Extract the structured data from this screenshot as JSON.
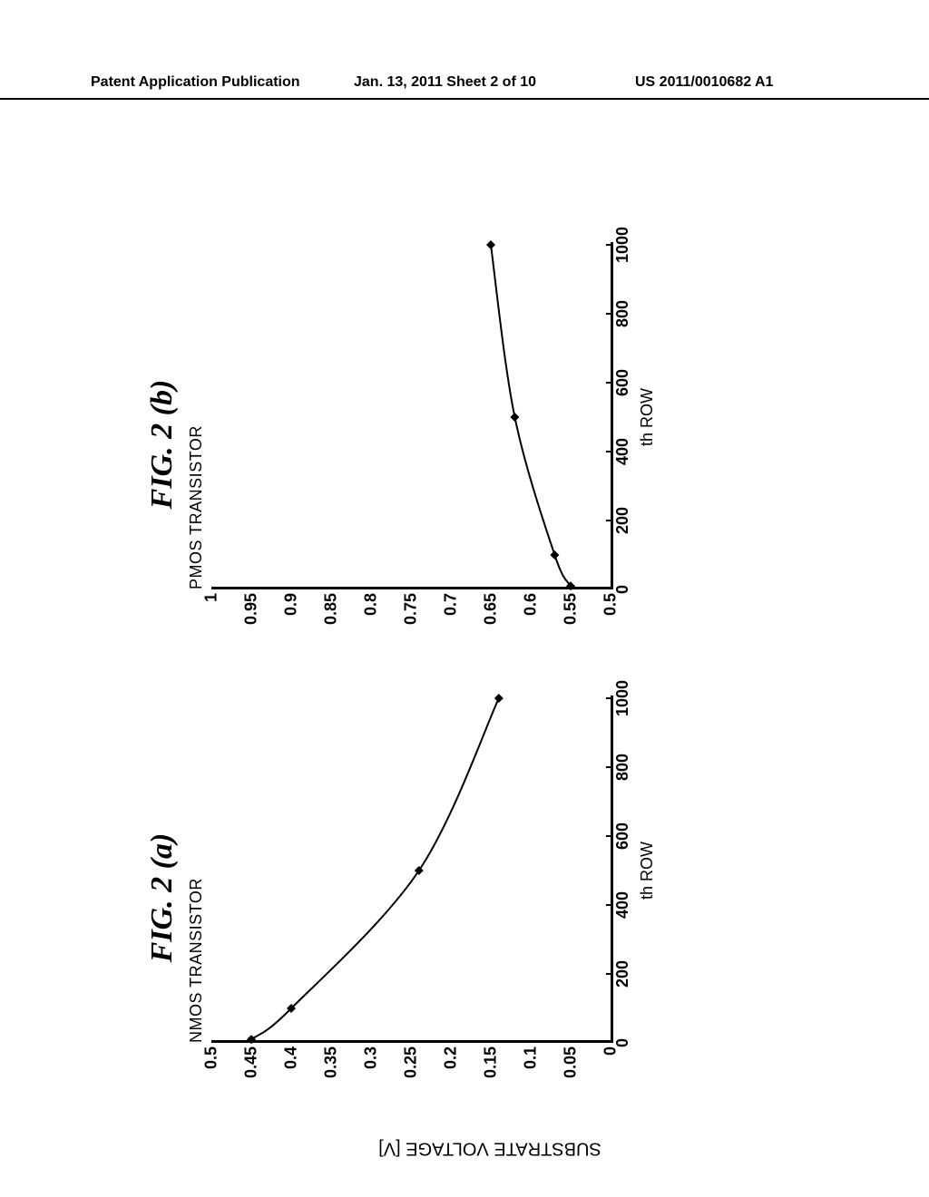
{
  "header": {
    "left": "Patent Application Publication",
    "center": "Jan. 13, 2011  Sheet 2 of 10",
    "right": "US 2011/0010682 A1"
  },
  "shared_y_label": "SUBSTRATE VOLTAGE [V]",
  "chart_a": {
    "type": "line",
    "fig_label": "FIG. 2 (a)",
    "subtitle": "NMOS TRANSISTOR",
    "x_label": "th ROW",
    "x_ticks": [
      0,
      200,
      400,
      600,
      800,
      1000
    ],
    "xlim": [
      0,
      1000
    ],
    "y_ticks": [
      0,
      0.05,
      0.1,
      0.15,
      0.2,
      0.25,
      0.3,
      0.35,
      0.4,
      0.45,
      0.5
    ],
    "ylim": [
      0,
      0.5
    ],
    "points": [
      {
        "x": 10,
        "y": 0.45
      },
      {
        "x": 100,
        "y": 0.4
      },
      {
        "x": 500,
        "y": 0.24
      },
      {
        "x": 1000,
        "y": 0.14
      }
    ],
    "line_color": "#000000",
    "line_width": 2,
    "marker_size": 5,
    "marker_shape": "diamond",
    "background_color": "#ffffff",
    "axis_color": "#000000",
    "tick_font_size": 18,
    "tick_font_weight": "bold"
  },
  "chart_b": {
    "type": "line",
    "fig_label": "FIG. 2 (b)",
    "subtitle": "PMOS TRANSISTOR",
    "x_label": "th ROW",
    "x_ticks": [
      0,
      200,
      400,
      600,
      800,
      1000
    ],
    "xlim": [
      0,
      1000
    ],
    "y_ticks": [
      0.5,
      0.55,
      0.6,
      0.65,
      0.7,
      0.75,
      0.8,
      0.85,
      0.9,
      0.95,
      1
    ],
    "ylim": [
      0.5,
      1.0
    ],
    "points": [
      {
        "x": 10,
        "y": 0.55
      },
      {
        "x": 100,
        "y": 0.57
      },
      {
        "x": 500,
        "y": 0.62
      },
      {
        "x": 1000,
        "y": 0.65
      }
    ],
    "line_color": "#000000",
    "line_width": 2,
    "marker_size": 5,
    "marker_shape": "diamond",
    "background_color": "#ffffff",
    "axis_color": "#000000",
    "tick_font_size": 18,
    "tick_font_weight": "bold"
  }
}
